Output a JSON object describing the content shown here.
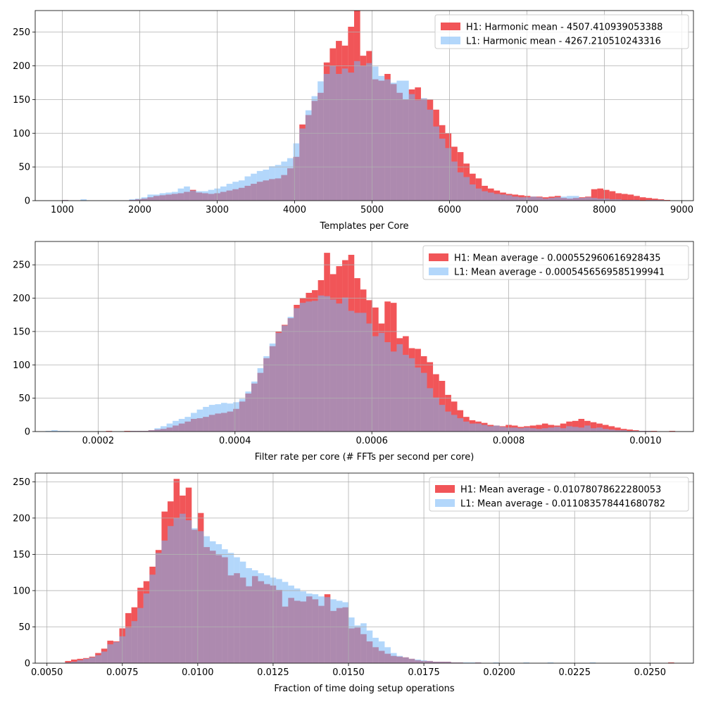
{
  "chart_data": [
    {
      "type": "histogram",
      "xlabel": "Templates per Core",
      "ylabel": "",
      "xlim": [
        650,
        9150
      ],
      "ylim": [
        0,
        282
      ],
      "xticks": [
        1000,
        2000,
        3000,
        4000,
        5000,
        6000,
        7000,
        8000,
        9000
      ],
      "xtick_labels": [
        "1000",
        "2000",
        "3000",
        "4000",
        "5000",
        "6000",
        "7000",
        "8000",
        "9000"
      ],
      "yticks": [
        0,
        50,
        100,
        150,
        200,
        250
      ],
      "ytick_labels": [
        "0",
        "50",
        "100",
        "150",
        "200",
        "250"
      ],
      "grid": true,
      "legend_position": "top-right",
      "series": [
        {
          "name": "H1: Harmonic mean  - 4507.410939053388",
          "color": "#ee2a2e",
          "bin_start": 1000,
          "bin_width": 78.5,
          "counts": [
            1,
            0,
            0,
            0,
            0,
            0,
            0,
            0,
            0,
            0,
            0,
            1,
            2,
            3,
            5,
            7,
            8,
            9,
            10,
            11,
            13,
            16,
            12,
            11,
            10,
            11,
            13,
            15,
            17,
            19,
            22,
            25,
            28,
            30,
            32,
            33,
            38,
            48,
            65,
            113,
            127,
            148,
            160,
            205,
            226,
            237,
            230,
            258,
            282,
            215,
            222,
            180,
            178,
            188,
            173,
            160,
            150,
            165,
            168,
            151,
            150,
            135,
            112,
            100,
            80,
            72,
            55,
            40,
            33,
            22,
            18,
            15,
            12,
            10,
            9,
            8,
            7,
            6,
            6,
            5,
            6,
            7,
            4,
            3,
            4,
            5,
            6,
            17,
            18,
            16,
            14,
            11,
            10,
            9,
            7,
            5,
            4,
            3,
            2,
            1
          ]
        },
        {
          "name": "L1: Harmonic mean  - 4267.210510243316",
          "color": "#75b7f7",
          "bin_start": 1000,
          "bin_width": 78.5,
          "counts": [
            1,
            0,
            0,
            2,
            0,
            0,
            0,
            0,
            0,
            0,
            0,
            2,
            3,
            5,
            9,
            9,
            11,
            12,
            13,
            18,
            21,
            15,
            14,
            14,
            16,
            18,
            21,
            25,
            28,
            30,
            36,
            40,
            44,
            46,
            51,
            53,
            58,
            63,
            85,
            107,
            134,
            155,
            177,
            188,
            200,
            188,
            196,
            190,
            207,
            200,
            204,
            199,
            185,
            180,
            175,
            178,
            178,
            158,
            149,
            152,
            135,
            110,
            92,
            78,
            58,
            42,
            35,
            24,
            18,
            14,
            12,
            10,
            9,
            8,
            6,
            5,
            5,
            6,
            5,
            3,
            4,
            5,
            6,
            7,
            7,
            4,
            5,
            4,
            3,
            3,
            2,
            2,
            1,
            1,
            1,
            0,
            1,
            1,
            1
          ]
        }
      ]
    },
    {
      "type": "histogram",
      "xlabel": "Filter rate per core (# FFTs per second per core)",
      "ylabel": "",
      "xlim": [
        0.000108,
        0.00107
      ],
      "ylim": [
        0,
        285
      ],
      "xticks": [
        0.0002,
        0.0004,
        0.0006,
        0.0008,
        0.001
      ],
      "xtick_labels": [
        "0.0002",
        "0.0004",
        "0.0006",
        "0.0008",
        "0.0010"
      ],
      "yticks": [
        0,
        50,
        100,
        150,
        200,
        250
      ],
      "ytick_labels": [
        "0",
        "50",
        "100",
        "150",
        "200",
        "250"
      ],
      "grid": true,
      "legend_position": "top-right",
      "series": [
        {
          "name": "H1: Mean average - 0.000552960616928435",
          "color": "#ee2a2e",
          "bin_start": 0.000123,
          "bin_width": 8.85e-06,
          "counts": [
            0,
            0,
            0,
            0,
            0,
            0,
            0,
            0,
            0,
            0,
            1,
            0,
            0,
            1,
            1,
            1,
            1,
            2,
            3,
            4,
            6,
            9,
            12,
            15,
            19,
            20,
            22,
            25,
            27,
            28,
            30,
            34,
            45,
            57,
            72,
            88,
            110,
            128,
            150,
            160,
            170,
            190,
            200,
            208,
            212,
            227,
            268,
            236,
            248,
            257,
            265,
            230,
            213,
            197,
            186,
            162,
            195,
            193,
            140,
            143,
            125,
            124,
            113,
            104,
            86,
            76,
            55,
            45,
            32,
            22,
            17,
            15,
            13,
            10,
            9,
            8,
            10,
            9,
            7,
            8,
            9,
            10,
            12,
            10,
            9,
            12,
            15,
            16,
            19,
            16,
            14,
            12,
            10,
            8,
            6,
            4,
            3,
            2,
            1,
            1,
            1,
            0,
            0,
            1,
            0,
            0
          ]
        },
        {
          "name": "L1: Mean average - 0.0005456569585199941",
          "color": "#75b7f7",
          "bin_start": 0.000123,
          "bin_width": 8.85e-06,
          "counts": [
            1,
            2,
            1,
            1,
            0,
            0,
            0,
            0,
            0,
            0,
            0,
            0,
            0,
            0,
            1,
            1,
            1,
            2,
            5,
            8,
            12,
            16,
            19,
            22,
            28,
            33,
            37,
            40,
            41,
            43,
            42,
            44,
            49,
            60,
            75,
            95,
            113,
            132,
            148,
            159,
            172,
            185,
            193,
            195,
            196,
            204,
            203,
            198,
            192,
            201,
            181,
            178,
            178,
            162,
            143,
            148,
            134,
            120,
            131,
            115,
            110,
            96,
            88,
            65,
            51,
            40,
            30,
            25,
            20,
            15,
            12,
            12,
            10,
            8,
            9,
            7,
            6,
            6,
            5,
            6,
            5,
            4,
            5,
            6,
            7,
            5,
            8,
            7,
            6,
            9,
            5,
            6,
            4,
            3,
            2,
            2,
            1,
            1,
            1,
            1,
            0,
            0,
            0,
            0,
            0,
            0
          ]
        }
      ]
    },
    {
      "type": "histogram",
      "xlabel": "Fraction of time doing setup operations",
      "ylabel": "",
      "xlim": [
        0.00461,
        0.02644
      ],
      "ylim": [
        0,
        262
      ],
      "xticks": [
        0.005,
        0.0075,
        0.01,
        0.0125,
        0.015,
        0.0175,
        0.02,
        0.0225,
        0.025
      ],
      "xtick_labels": [
        "0.0050",
        "0.0075",
        "0.0100",
        "0.0125",
        "0.0150",
        "0.0175",
        "0.0200",
        "0.0225",
        "0.0250"
      ],
      "yticks": [
        0,
        50,
        100,
        150,
        200,
        250
      ],
      "ytick_labels": [
        "0",
        "50",
        "100",
        "150",
        "200",
        "250"
      ],
      "grid": true,
      "legend_position": "top-right",
      "series": [
        {
          "name": "H1: Mean average - 0.01078078622280053",
          "color": "#ee2a2e",
          "bin_start": 0.0056,
          "bin_width": 0.0002,
          "counts": [
            3,
            5,
            6,
            7,
            9,
            14,
            20,
            31,
            30,
            48,
            69,
            77,
            104,
            113,
            133,
            156,
            209,
            223,
            254,
            231,
            242,
            184,
            207,
            160,
            155,
            149,
            146,
            121,
            124,
            118,
            106,
            120,
            113,
            109,
            107,
            101,
            78,
            90,
            86,
            85,
            92,
            88,
            79,
            95,
            72,
            76,
            77,
            48,
            49,
            40,
            30,
            22,
            17,
            13,
            10,
            9,
            8,
            6,
            4,
            3,
            3,
            2,
            2,
            2,
            1,
            1,
            0,
            0,
            1,
            0,
            0,
            0,
            0,
            0,
            0,
            0,
            0,
            0,
            0,
            0,
            0,
            0,
            0,
            0,
            0,
            0,
            0,
            0,
            0,
            0,
            0,
            0,
            0,
            0,
            0,
            0,
            0,
            0,
            0,
            0,
            1
          ]
        },
        {
          "name": "L1: Mean average - 0.011083578441680782",
          "color": "#75b7f7",
          "bin_start": 0.0056,
          "bin_width": 0.0002,
          "counts": [
            1,
            2,
            4,
            6,
            8,
            11,
            16,
            26,
            29,
            37,
            49,
            58,
            76,
            96,
            122,
            152,
            169,
            189,
            200,
            206,
            197,
            186,
            182,
            175,
            168,
            164,
            157,
            152,
            146,
            140,
            131,
            128,
            124,
            121,
            118,
            116,
            112,
            107,
            103,
            99,
            96,
            95,
            92,
            91,
            88,
            86,
            84,
            63,
            52,
            55,
            45,
            35,
            30,
            22,
            14,
            10,
            8,
            6,
            5,
            4,
            3,
            2,
            2,
            2,
            1,
            1,
            1,
            1,
            1,
            0,
            0,
            1,
            0,
            0,
            0,
            0,
            1,
            0,
            0,
            0,
            1,
            0,
            0,
            0,
            0,
            0,
            0,
            1,
            0,
            0,
            0,
            0,
            0,
            0,
            0,
            0,
            0,
            0,
            0,
            0,
            0
          ]
        }
      ]
    }
  ]
}
